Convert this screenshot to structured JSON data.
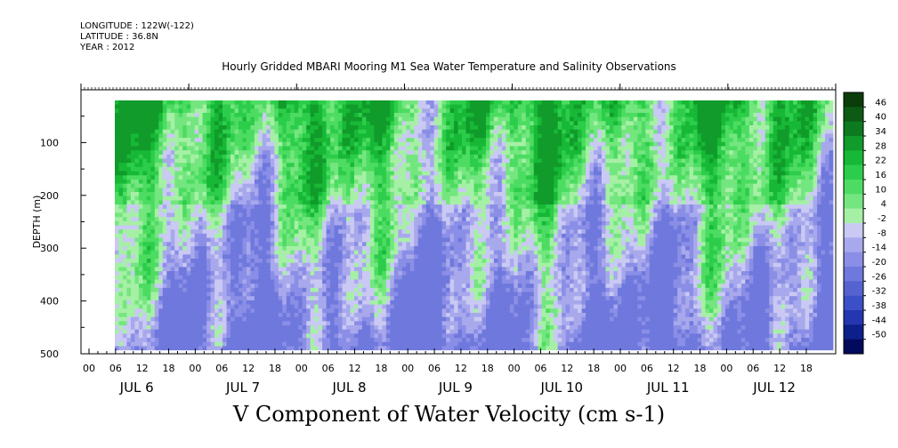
{
  "header": {
    "longitude": "LONGITUDE : 122W(-122)",
    "latitude": "LATITUDE : 36.8N",
    "year": "YEAR : 2012"
  },
  "chart_data": {
    "type": "heatmap",
    "title": "Hourly Gridded MBARI Mooring M1 Sea Water Temperature and Salinity Observations",
    "xlabel": "V Component of Water Velocity (cm s-1)",
    "ylabel": "DEPTH (m)",
    "ylim": [
      500,
      0
    ],
    "y_ticks": [
      "100",
      "200",
      "300",
      "400",
      "500"
    ],
    "x_hour_ticks": [
      "00",
      "06",
      "12",
      "18",
      "00",
      "06",
      "12",
      "18",
      "00",
      "06",
      "12",
      "18",
      "00",
      "06",
      "12",
      "18",
      "00",
      "06",
      "12",
      "18",
      "00",
      "06",
      "12",
      "18",
      "00",
      "06",
      "12",
      "18"
    ],
    "x_day_labels": [
      "JUL 6",
      "JUL 7",
      "JUL 8",
      "JUL 9",
      "JUL 10",
      "JUL 11",
      "JUL 12"
    ],
    "colorbar_labels": [
      "46",
      "40",
      "34",
      "28",
      "22",
      "16",
      "10",
      "4",
      "-2",
      "-8",
      "-14",
      "-20",
      "-26",
      "-32",
      "-38",
      "-44",
      "-50"
    ],
    "colorbar_colors": [
      "#0a3d0a",
      "#0c5a14",
      "#0d7a1f",
      "#109b2a",
      "#17b836",
      "#2ccd4a",
      "#4ddc62",
      "#74e67f",
      "#a6f0a6",
      "#c9c9f4",
      "#a8a8ec",
      "#8a8ee6",
      "#6f78dc",
      "#5563d0",
      "#3b4fc6",
      "#2537b0",
      "#0d1f8a",
      "#020a5c"
    ],
    "grid": false,
    "legend": "colorbar right",
    "data_description_note": "",
    "depth_range": [
      20,
      480
    ]
  }
}
